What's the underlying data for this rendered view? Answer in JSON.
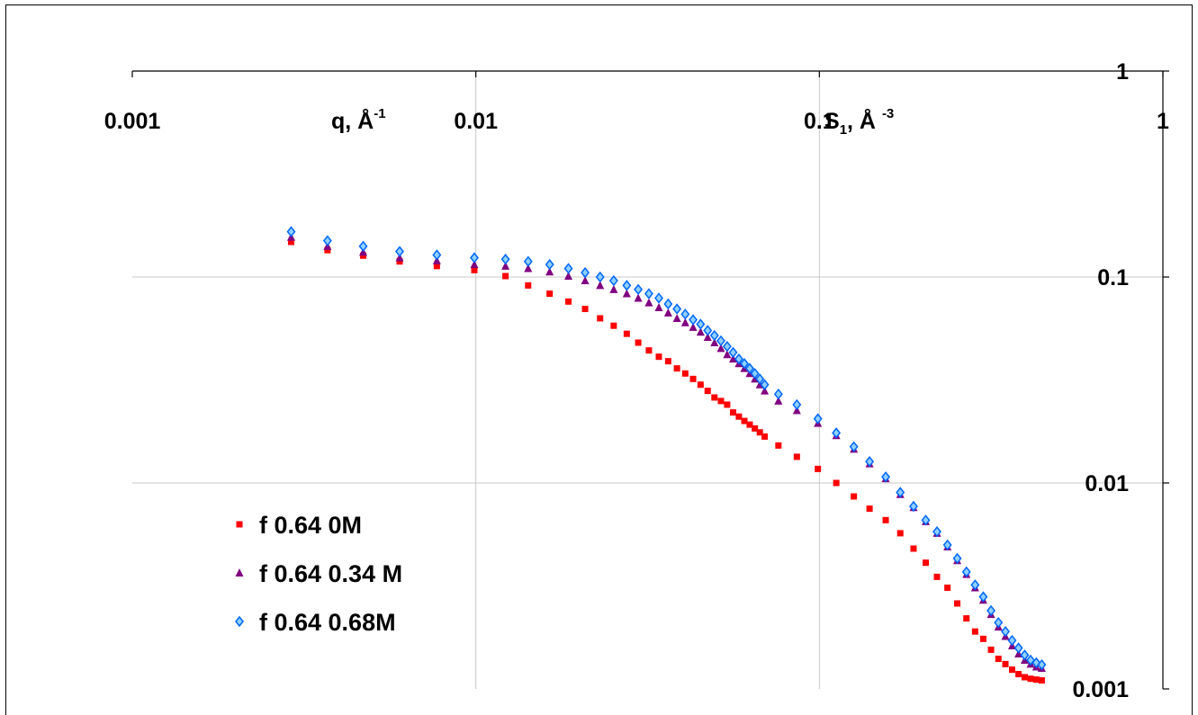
{
  "chart_data": {
    "type": "scatter",
    "title": "",
    "x_scale": "log",
    "y_scale": "log",
    "xlim": [
      0.001,
      1
    ],
    "ylim": [
      0.001,
      1
    ],
    "x_ticks": [
      {
        "value": 0.001,
        "label": "0.001"
      },
      {
        "value": 0.01,
        "label": "0.01"
      },
      {
        "value": 0.1,
        "label": "0.1"
      },
      {
        "value": 1,
        "label": "1"
      }
    ],
    "y_ticks": [
      {
        "value": 1,
        "label": "1"
      },
      {
        "value": 0.1,
        "label": "0.1"
      },
      {
        "value": 0.01,
        "label": "0.01"
      },
      {
        "value": 0.001,
        "label": "0.001"
      }
    ],
    "xlabel": {
      "main": "q, Å",
      "sup": "-1"
    },
    "ylabel": {
      "main": "S",
      "sub": "1",
      "rest": ", Å ",
      "sup": "-3"
    },
    "grid": true,
    "legend_position": "bottom-left",
    "series": [
      {
        "name": "f 0.64 0M",
        "marker": "square",
        "color": "#ff0000",
        "x": [
          0.0029,
          0.0037,
          0.0047,
          0.006,
          0.0077,
          0.0099,
          0.0122,
          0.0142,
          0.0164,
          0.0186,
          0.0208,
          0.023,
          0.0252,
          0.0275,
          0.0297,
          0.0319,
          0.0341,
          0.0363,
          0.0385,
          0.0407,
          0.0429,
          0.0451,
          0.0473,
          0.0495,
          0.0517,
          0.0539,
          0.0561,
          0.0583,
          0.0605,
          0.0627,
          0.0649,
          0.0671,
          0.0693,
          0.076,
          0.086,
          0.099,
          0.112,
          0.126,
          0.14,
          0.156,
          0.172,
          0.188,
          0.204,
          0.22,
          0.236,
          0.252,
          0.268,
          0.284,
          0.3,
          0.316,
          0.332,
          0.348,
          0.364,
          0.38,
          0.396,
          0.412,
          0.428,
          0.444
        ],
        "y": [
          0.148,
          0.135,
          0.127,
          0.119,
          0.113,
          0.108,
          0.101,
          0.091,
          0.083,
          0.076,
          0.07,
          0.063,
          0.058,
          0.053,
          0.048,
          0.044,
          0.041,
          0.039,
          0.036,
          0.034,
          0.032,
          0.03,
          0.028,
          0.026,
          0.025,
          0.024,
          0.022,
          0.021,
          0.02,
          0.0192,
          0.0184,
          0.0176,
          0.0168,
          0.0152,
          0.0134,
          0.0117,
          0.01,
          0.0086,
          0.0075,
          0.0066,
          0.0057,
          0.0048,
          0.0041,
          0.0035,
          0.0031,
          0.0026,
          0.0022,
          0.0019,
          0.00175,
          0.00155,
          0.0014,
          0.00132,
          0.00124,
          0.00118,
          0.00114,
          0.00112,
          0.00111,
          0.0011
        ]
      },
      {
        "name": "f 0.64 0.34 M",
        "marker": "triangle",
        "color": "#800080",
        "x": [
          0.0029,
          0.0037,
          0.0047,
          0.006,
          0.0077,
          0.0099,
          0.0122,
          0.0142,
          0.0164,
          0.0186,
          0.0208,
          0.023,
          0.0252,
          0.0275,
          0.0297,
          0.0319,
          0.0341,
          0.0363,
          0.0385,
          0.0407,
          0.0429,
          0.0451,
          0.0473,
          0.0495,
          0.0517,
          0.0539,
          0.0561,
          0.0583,
          0.0605,
          0.0627,
          0.0649,
          0.0671,
          0.0693,
          0.076,
          0.086,
          0.099,
          0.112,
          0.126,
          0.14,
          0.156,
          0.172,
          0.188,
          0.204,
          0.22,
          0.236,
          0.252,
          0.268,
          0.284,
          0.3,
          0.316,
          0.332,
          0.348,
          0.364,
          0.38,
          0.396,
          0.412,
          0.428,
          0.444
        ],
        "y": [
          0.156,
          0.141,
          0.132,
          0.124,
          0.12,
          0.115,
          0.113,
          0.11,
          0.106,
          0.101,
          0.096,
          0.091,
          0.087,
          0.083,
          0.079,
          0.075,
          0.071,
          0.067,
          0.063,
          0.06,
          0.057,
          0.054,
          0.051,
          0.048,
          0.045,
          0.042,
          0.04,
          0.038,
          0.036,
          0.034,
          0.032,
          0.03,
          0.028,
          0.025,
          0.0225,
          0.0195,
          0.017,
          0.0146,
          0.0124,
          0.0105,
          0.0088,
          0.0076,
          0.0065,
          0.0057,
          0.0049,
          0.0042,
          0.0036,
          0.0031,
          0.0027,
          0.0023,
          0.002,
          0.0018,
          0.00162,
          0.00148,
          0.00138,
          0.00132,
          0.00128,
          0.00126
        ]
      },
      {
        "name": "f 0.64 0.68M",
        "marker": "diamond",
        "color": "#0066ff",
        "x": [
          0.0029,
          0.0037,
          0.0047,
          0.006,
          0.0077,
          0.0099,
          0.0122,
          0.0142,
          0.0164,
          0.0186,
          0.0208,
          0.023,
          0.0252,
          0.0275,
          0.0297,
          0.0319,
          0.0341,
          0.0363,
          0.0385,
          0.0407,
          0.0429,
          0.0451,
          0.0473,
          0.0495,
          0.0517,
          0.0539,
          0.0561,
          0.0583,
          0.0605,
          0.0627,
          0.0649,
          0.0671,
          0.0693,
          0.076,
          0.086,
          0.099,
          0.112,
          0.126,
          0.14,
          0.156,
          0.172,
          0.188,
          0.204,
          0.22,
          0.236,
          0.252,
          0.268,
          0.284,
          0.3,
          0.316,
          0.332,
          0.348,
          0.364,
          0.38,
          0.396,
          0.412,
          0.428,
          0.444
        ],
        "y": [
          0.166,
          0.15,
          0.141,
          0.133,
          0.128,
          0.124,
          0.122,
          0.119,
          0.115,
          0.11,
          0.105,
          0.1,
          0.096,
          0.091,
          0.087,
          0.083,
          0.079,
          0.074,
          0.07,
          0.066,
          0.062,
          0.059,
          0.055,
          0.052,
          0.049,
          0.046,
          0.043,
          0.04,
          0.038,
          0.036,
          0.034,
          0.032,
          0.03,
          0.027,
          0.024,
          0.0205,
          0.0175,
          0.015,
          0.0127,
          0.0107,
          0.009,
          0.0077,
          0.0066,
          0.0058,
          0.005,
          0.0043,
          0.0037,
          0.0032,
          0.0028,
          0.0024,
          0.0021,
          0.0019,
          0.00172,
          0.00158,
          0.00146,
          0.00138,
          0.00134,
          0.00131
        ]
      }
    ]
  }
}
